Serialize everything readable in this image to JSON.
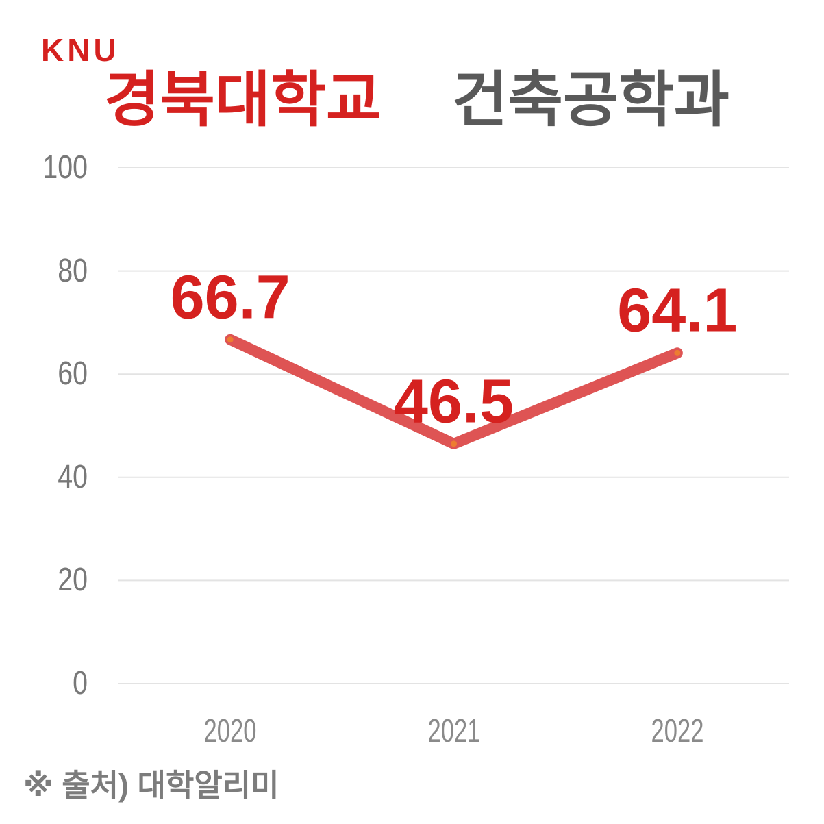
{
  "brand": {
    "logo": "KNU"
  },
  "header": {
    "university": "경북대학교",
    "department": "건축공학과"
  },
  "footer": {
    "source": "※ 출처) 대학알리미"
  },
  "colors": {
    "brand_red": "#d5211f",
    "title_gray": "#595959",
    "axis_label_gray": "#787878",
    "xaxis_label_gray": "#8a8a8a",
    "gridline": "#e3e3e3",
    "source_gray": "#7c7c7c"
  },
  "chart_data": {
    "type": "line",
    "title": "경북대학교 건축공학과",
    "categories": [
      "2020",
      "2021",
      "2022"
    ],
    "values": [
      66.7,
      46.5,
      64.1
    ],
    "yticks": [
      0,
      20,
      40,
      60,
      80,
      100
    ],
    "ylim": [
      0,
      100
    ],
    "xlabel": "",
    "ylabel": "",
    "grid": true,
    "legend": false,
    "line_color": "#de5454",
    "marker_color": "#ed7d31",
    "data_label_color": "#d5211f"
  }
}
